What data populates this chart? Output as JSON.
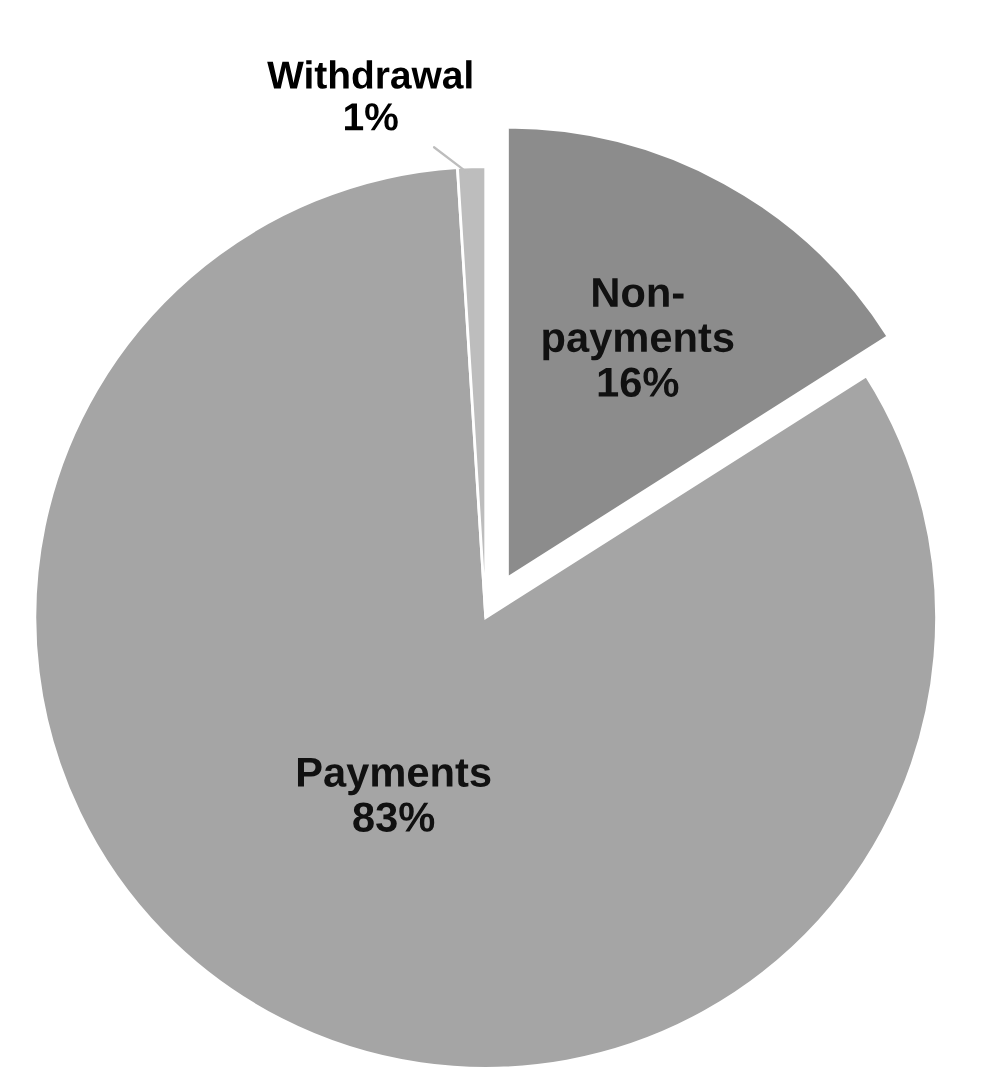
{
  "chart_data": {
    "type": "pie",
    "categories": [
      "Non-payments",
      "Payments",
      "Withdrawal"
    ],
    "values": [
      16,
      83,
      1
    ],
    "value_labels": [
      "16%",
      "83%",
      "1%"
    ],
    "colors": [
      "#8c8c8c",
      "#a5a5a5",
      "#bdbdbd"
    ]
  }
}
